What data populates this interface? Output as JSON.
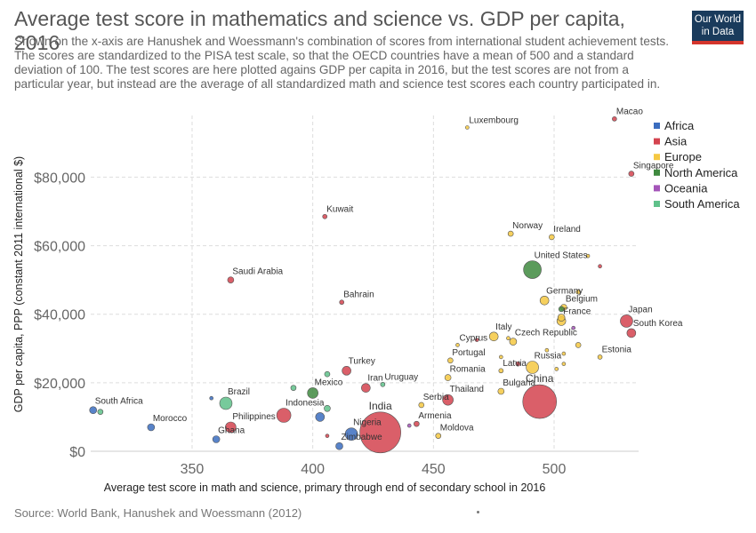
{
  "header": {
    "title": "Average test score in mathematics and science vs. GDP per capita, 2016",
    "subtitle": "Shown on the x-axis are Hanushek and Woessmann's combination of scores from international student achievement tests. The scores are standardized to the PISA test scale, so that the OECD countries have a mean of 500 and a standard deviation of 100. The test scores are here plotted agains GDP per capita in 2016, but the test scores are not from a particular year, but instead are the average of all standardized math and science test scores each country participated in.",
    "logo_line1": "Our World",
    "logo_line2": "in Data"
  },
  "footer": {
    "source": "Source: World Bank, Hanushek and Woessmann (2012)"
  },
  "colors": {
    "Africa": "#3b6dbf",
    "Asia": "#d4434f",
    "Europe": "#f5c842",
    "North America": "#3f8a3f",
    "Oceania": "#a455b9",
    "South America": "#5fc18a"
  },
  "chart_data": {
    "type": "scatter",
    "title": "Average test score in mathematics and science vs. GDP per capita, 2016",
    "xlabel": "Average test score in math and science, primary through end of secondary school in 2016",
    "ylabel": "GDP per capita, PPP (constant 2011 international $)",
    "xlim": [
      308,
      535
    ],
    "ylim": [
      0,
      98000
    ],
    "xticks": [
      350,
      400,
      450,
      500
    ],
    "xtick_labels": [
      "350",
      "400",
      "450",
      "500"
    ],
    "yticks": [
      0,
      20000,
      40000,
      60000,
      80000
    ],
    "ytick_labels": [
      "$0",
      "$20,000",
      "$40,000",
      "$60,000",
      "$80,000"
    ],
    "grid": true,
    "legend_position": "right",
    "legend": [
      "Africa",
      "Asia",
      "Europe",
      "North America",
      "Oceania",
      "South America"
    ],
    "points": [
      {
        "label": "Luxembourg",
        "x": 464,
        "y": 94500,
        "r": 2,
        "region": "Europe"
      },
      {
        "label": "Macao",
        "x": 525,
        "y": 97000,
        "r": 2.5,
        "region": "Asia"
      },
      {
        "label": "Singapore",
        "x": 532,
        "y": 81000,
        "r": 3,
        "region": "Asia"
      },
      {
        "label": "Kuwait",
        "x": 405,
        "y": 68500,
        "r": 2.5,
        "region": "Asia"
      },
      {
        "label": "Norway",
        "x": 482,
        "y": 63500,
        "r": 3,
        "region": "Europe"
      },
      {
        "label": "Ireland",
        "x": 499,
        "y": 62500,
        "r": 3,
        "region": "Europe"
      },
      {
        "label": "United States",
        "x": 491,
        "y": 53000,
        "r": 10,
        "region": "North America"
      },
      {
        "label": "Saudi Arabia",
        "x": 366,
        "y": 50000,
        "r": 3.5,
        "region": "Asia"
      },
      {
        "label": "Bahrain",
        "x": 412,
        "y": 43500,
        "r": 2.5,
        "region": "Asia"
      },
      {
        "label": "Germany",
        "x": 496,
        "y": 44000,
        "r": 5,
        "region": "Europe"
      },
      {
        "label": "Belgium",
        "x": 504,
        "y": 42000,
        "r": 3.5,
        "region": "Europe"
      },
      {
        "label": "France",
        "x": 503,
        "y": 38000,
        "r": 5,
        "region": "Europe"
      },
      {
        "label": "Japan",
        "x": 530,
        "y": 38000,
        "r": 7,
        "region": "Asia"
      },
      {
        "label": "South Korea",
        "x": 532,
        "y": 34500,
        "r": 5,
        "region": "Asia"
      },
      {
        "label": "Italy",
        "x": 475,
        "y": 33500,
        "r": 5,
        "region": "Europe"
      },
      {
        "label": "Cyprus",
        "x": 460,
        "y": 31000,
        "r": 2,
        "region": "Europe"
      },
      {
        "label": "Czech Republic",
        "x": 483,
        "y": 32000,
        "r": 4,
        "region": "Europe"
      },
      {
        "label": "Estonia",
        "x": 519,
        "y": 27500,
        "r": 2.5,
        "region": "Europe"
      },
      {
        "label": "Portugal",
        "x": 457,
        "y": 26500,
        "r": 3,
        "region": "Europe"
      },
      {
        "label": "Russia",
        "x": 491,
        "y": 24500,
        "r": 7,
        "region": "Europe"
      },
      {
        "label": "Latvia",
        "x": 478,
        "y": 23500,
        "r": 2.5,
        "region": "Europe"
      },
      {
        "label": "Turkey",
        "x": 414,
        "y": 23500,
        "r": 5,
        "region": "Asia"
      },
      {
        "label": "Romania",
        "x": 456,
        "y": 21500,
        "r": 3.5,
        "region": "Europe"
      },
      {
        "label": "Uruguay",
        "x": 429,
        "y": 19500,
        "r": 2.5,
        "region": "South America"
      },
      {
        "label": "Iran",
        "x": 422,
        "y": 18500,
        "r": 5,
        "region": "Asia"
      },
      {
        "label": "Bulgaria",
        "x": 478,
        "y": 17500,
        "r": 3.5,
        "region": "Europe"
      },
      {
        "label": "Mexico",
        "x": 400,
        "y": 17000,
        "r": 6,
        "region": "North America"
      },
      {
        "label": "Thailand",
        "x": 456,
        "y": 15000,
        "r": 6,
        "region": "Asia"
      },
      {
        "label": "China",
        "x": 494,
        "y": 14500,
        "r": 19,
        "region": "Asia"
      },
      {
        "label": "Brazil",
        "x": 364,
        "y": 14000,
        "r": 7,
        "region": "South America"
      },
      {
        "label": "Serbia",
        "x": 445,
        "y": 13500,
        "r": 3,
        "region": "Europe"
      },
      {
        "label": "South Africa",
        "x": 309,
        "y": 12000,
        "r": 4,
        "region": "Africa"
      },
      {
        "label": "Indonesia",
        "x": 388,
        "y": 10500,
        "r": 8,
        "region": "Asia"
      },
      {
        "label": "Philippines",
        "x": 366,
        "y": 7000,
        "r": 6,
        "region": "Asia"
      },
      {
        "label": "Armenia",
        "x": 443,
        "y": 8000,
        "r": 3,
        "region": "Asia"
      },
      {
        "label": "Morocco",
        "x": 333,
        "y": 7000,
        "r": 4,
        "region": "Africa"
      },
      {
        "label": "India",
        "x": 428,
        "y": 5500,
        "r": 23,
        "region": "Asia"
      },
      {
        "label": "Nigeria",
        "x": 416,
        "y": 5000,
        "r": 7,
        "region": "Africa"
      },
      {
        "label": "Moldova",
        "x": 452,
        "y": 4500,
        "r": 3,
        "region": "Europe"
      },
      {
        "label": "Ghana",
        "x": 360,
        "y": 3500,
        "r": 4,
        "region": "Africa"
      },
      {
        "label": "Zimbabwe",
        "x": 411,
        "y": 1500,
        "r": 4,
        "region": "Africa"
      },
      {
        "label": "",
        "x": 312,
        "y": 11500,
        "r": 3,
        "region": "South America"
      },
      {
        "label": "",
        "x": 358,
        "y": 15500,
        "r": 2,
        "region": "Africa"
      },
      {
        "label": "",
        "x": 392,
        "y": 18500,
        "r": 3,
        "region": "South America"
      },
      {
        "label": "",
        "x": 406,
        "y": 22500,
        "r": 3,
        "region": "South America"
      },
      {
        "label": "",
        "x": 403,
        "y": 10000,
        "r": 5,
        "region": "Africa"
      },
      {
        "label": "",
        "x": 406,
        "y": 12500,
        "r": 3.5,
        "region": "South America"
      },
      {
        "label": "",
        "x": 406,
        "y": 4500,
        "r": 2,
        "region": "Asia"
      },
      {
        "label": "",
        "x": 440,
        "y": 7500,
        "r": 2,
        "region": "Oceania"
      },
      {
        "label": "",
        "x": 468,
        "y": 32500,
        "r": 2,
        "region": "Asia"
      },
      {
        "label": "",
        "x": 481,
        "y": 33000,
        "r": 2,
        "region": "Europe"
      },
      {
        "label": "",
        "x": 485,
        "y": 25500,
        "r": 2.5,
        "region": "Asia"
      },
      {
        "label": "",
        "x": 478,
        "y": 27500,
        "r": 2,
        "region": "Europe"
      },
      {
        "label": "",
        "x": 497,
        "y": 29500,
        "r": 2,
        "region": "Europe"
      },
      {
        "label": "",
        "x": 504,
        "y": 28500,
        "r": 2,
        "region": "Europe"
      },
      {
        "label": "",
        "x": 504,
        "y": 25500,
        "r": 2,
        "region": "Europe"
      },
      {
        "label": "",
        "x": 501,
        "y": 24000,
        "r": 2,
        "region": "Europe"
      },
      {
        "label": "",
        "x": 508,
        "y": 36000,
        "r": 2,
        "region": "Oceania"
      },
      {
        "label": "",
        "x": 510,
        "y": 31000,
        "r": 3,
        "region": "Europe"
      },
      {
        "label": "",
        "x": 510,
        "y": 46500,
        "r": 2.5,
        "region": "Europe"
      },
      {
        "label": "",
        "x": 514,
        "y": 57000,
        "r": 2,
        "region": "Europe"
      },
      {
        "label": "",
        "x": 519,
        "y": 54000,
        "r": 2,
        "region": "Asia"
      },
      {
        "label": "",
        "x": 503,
        "y": 39000,
        "r": 4,
        "region": "Europe"
      },
      {
        "label": "",
        "x": 503,
        "y": 41500,
        "r": 3,
        "region": "North America"
      }
    ]
  }
}
